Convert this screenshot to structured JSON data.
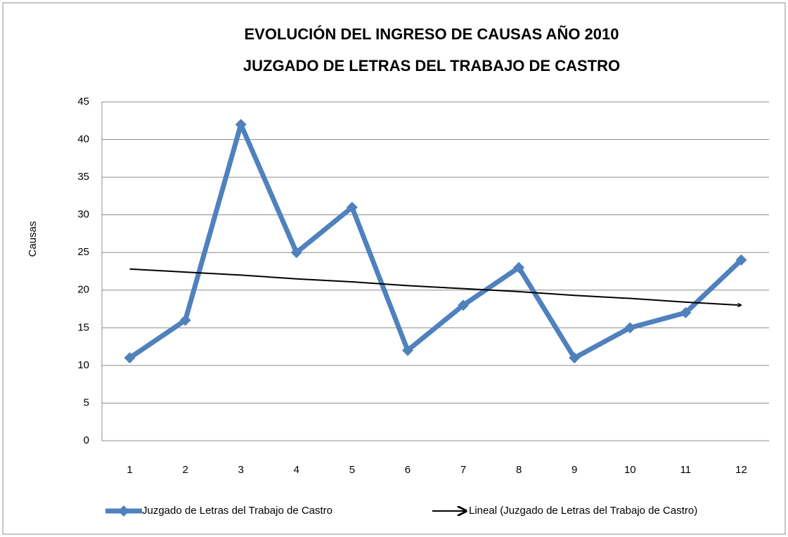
{
  "chart_data": {
    "type": "line",
    "title": [
      "EVOLUCIÓN DEL INGRESO DE CAUSAS AÑO 2010",
      "JUZGADO DE LETRAS DEL TRABAJO DE CASTRO"
    ],
    "y_label": "Causas",
    "categories": [
      "1",
      "2",
      "3",
      "4",
      "5",
      "6",
      "7",
      "8",
      "9",
      "10",
      "11",
      "12"
    ],
    "series": [
      {
        "name": "Juzgado de Letras del Trabajo de Castro",
        "color": "#4f81bd",
        "values": [
          11,
          16,
          42,
          25,
          31,
          12,
          18,
          23,
          11,
          15,
          17,
          24
        ]
      },
      {
        "name": "Lineal (Juzgado de Letras del Trabajo de Castro)",
        "color": "#000000",
        "trendline": true,
        "values": [
          22.8,
          22.4,
          22.0,
          21.5,
          21.1,
          20.6,
          20.2,
          19.8,
          19.3,
          18.9,
          18.4,
          18.0
        ]
      }
    ],
    "ylim": [
      0,
      45
    ],
    "yticks": [
      0,
      5,
      10,
      15,
      20,
      25,
      30,
      35,
      40,
      45
    ],
    "grid": true,
    "legend": "bottom"
  }
}
